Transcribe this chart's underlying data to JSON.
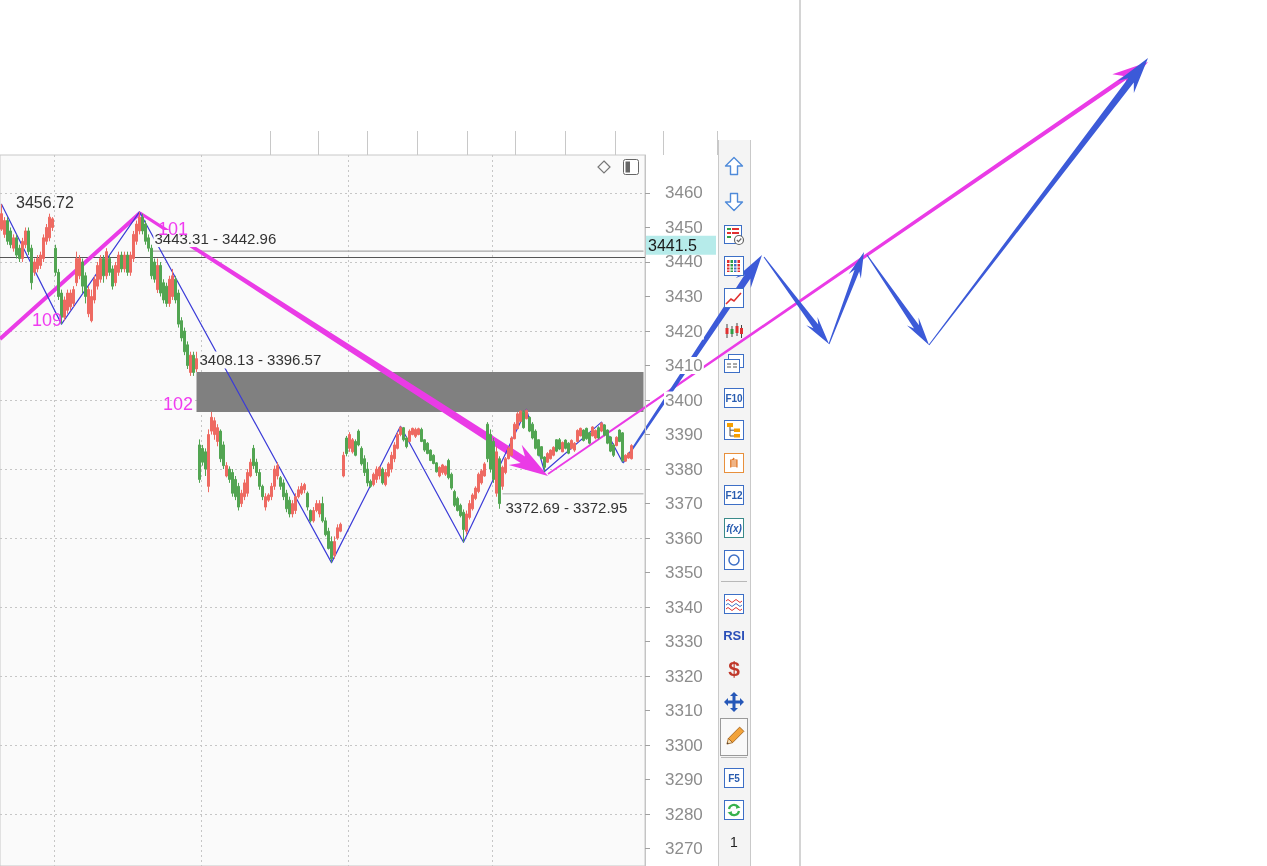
{
  "chart_data": {
    "type": "candlestick",
    "categories": [
      null,
      null,
      null,
      null,
      null,
      null,
      null,
      null,
      null,
      null,
      null,
      null,
      null,
      null,
      null,
      null,
      null,
      null,
      null,
      null,
      null,
      null,
      null,
      null,
      null,
      null,
      null,
      null,
      null,
      null,
      null,
      null,
      null,
      null,
      null,
      null,
      null,
      null,
      null,
      null,
      null,
      null,
      null,
      null,
      null,
      null,
      null,
      null,
      null,
      null,
      null,
      null,
      null,
      null,
      null,
      null,
      null,
      null,
      null,
      null,
      null,
      null,
      null,
      null,
      null,
      null,
      null,
      null,
      null,
      null,
      null,
      null,
      null,
      null,
      null,
      null,
      null,
      null,
      null,
      null,
      null,
      null,
      null,
      null,
      null,
      null,
      null,
      null,
      null,
      null,
      null,
      null,
      null,
      null,
      null,
      null,
      null,
      null,
      null,
      null,
      null,
      null,
      null,
      null,
      null,
      null,
      null,
      null,
      null,
      null,
      null,
      null,
      null,
      null,
      null,
      null,
      null,
      null,
      null,
      null,
      null,
      null,
      null,
      null,
      null,
      null,
      null,
      null,
      null,
      null,
      null,
      null,
      null,
      null,
      null,
      null,
      null,
      null,
      null,
      null,
      null,
      null,
      null,
      null,
      null,
      null,
      null,
      null,
      null,
      null,
      null,
      null,
      null,
      null,
      null,
      null,
      null,
      null,
      null,
      null,
      null,
      null,
      null,
      null,
      null,
      null,
      null,
      null,
      null,
      null,
      null,
      null,
      null,
      null,
      null,
      null,
      null,
      null,
      null,
      null,
      null,
      null,
      null,
      null,
      null,
      null,
      null,
      null,
      null,
      null,
      null,
      null,
      null,
      null,
      null,
      null,
      null,
      null,
      null,
      null,
      null,
      null,
      null,
      null,
      null,
      null,
      null,
      null,
      null,
      null,
      null,
      null,
      null,
      null,
      null
    ],
    "ohlc": [
      [
        3449.5,
        3456.72,
        3449,
        3454
      ],
      [
        3448,
        3453,
        3447,
        3452
      ],
      [
        3452,
        3453,
        3445,
        3446
      ],
      [
        3449,
        3450,
        3444,
        3445
      ],
      [
        3444,
        3448,
        3443,
        3447
      ],
      [
        3447,
        3448,
        3441,
        3442
      ],
      [
        3444,
        3445,
        3440,
        3441
      ],
      [
        3441,
        3447,
        3440,
        3446
      ],
      [
        3445,
        3450,
        3444,
        3449
      ],
      [
        3449,
        3450,
        3442,
        3443
      ],
      [
        3444,
        3445,
        3432,
        3434
      ],
      [
        3437,
        3441,
        3436,
        3440
      ],
      [
        3438,
        3442,
        3437,
        3441
      ],
      [
        3439,
        3443,
        3438,
        3442
      ],
      [
        3441,
        3448,
        3440,
        3447
      ],
      [
        3446,
        3451,
        3445,
        3450
      ],
      [
        3447,
        3454,
        3446,
        3453
      ],
      [
        3450,
        3453,
        3449,
        3452.5
      ],
      [
        3444,
        3445,
        3436,
        3437
      ],
      [
        3437,
        3438,
        3429,
        3430
      ],
      [
        3431,
        3432,
        3422,
        3424
      ],
      [
        3424,
        3430,
        3423,
        3429
      ],
      [
        3426,
        3432,
        3425,
        3431
      ],
      [
        3427,
        3432,
        3426,
        3431
      ],
      [
        3428,
        3433,
        3427,
        3432
      ],
      [
        3434,
        3443,
        3433,
        3441
      ],
      [
        3436,
        3442,
        3435,
        3441
      ],
      [
        3440,
        3441,
        3431,
        3433
      ],
      [
        3436,
        3437,
        3428,
        3430
      ],
      [
        3425,
        3433,
        3424,
        3432
      ],
      [
        3423,
        3432,
        3422.5,
        3430
      ],
      [
        3429,
        3436,
        3428,
        3435
      ],
      [
        3433,
        3440,
        3432,
        3439
      ],
      [
        3435,
        3442,
        3434,
        3441
      ],
      [
        3441,
        3442,
        3434,
        3436
      ],
      [
        3436,
        3444,
        3435,
        3443
      ],
      [
        3441,
        3442,
        3436,
        3437
      ],
      [
        3438,
        3439,
        3432,
        3433
      ],
      [
        3434,
        3440,
        3433,
        3439
      ],
      [
        3437,
        3443,
        3436,
        3442
      ],
      [
        3442,
        3443,
        3437,
        3438
      ],
      [
        3438,
        3443,
        3437,
        3442
      ],
      [
        3442,
        3443,
        3436,
        3437
      ],
      [
        3437,
        3443,
        3436,
        3442
      ],
      [
        3441,
        3449,
        3440,
        3448
      ],
      [
        3446,
        3452,
        3445,
        3451
      ],
      [
        3449,
        3454.5,
        3448,
        3453
      ],
      [
        3453,
        3454,
        3448,
        3449
      ],
      [
        3451,
        3452,
        3445,
        3446
      ],
      [
        3447,
        3448,
        3443,
        3444
      ],
      [
        3444,
        3445,
        3435,
        3436
      ],
      [
        3440,
        3441,
        3434,
        3435
      ],
      [
        3432,
        3441,
        3431,
        3439
      ],
      [
        3439,
        3440,
        3430,
        3431
      ],
      [
        3434,
        3435,
        3428,
        3429
      ],
      [
        3433,
        3434,
        3427,
        3428
      ],
      [
        3428,
        3436,
        3427,
        3435
      ],
      [
        3430,
        3438,
        3429,
        3436
      ],
      [
        3435,
        3436,
        3428,
        3429
      ],
      [
        3431,
        3432,
        3421,
        3422
      ],
      [
        3423,
        3424,
        3417,
        3418
      ],
      [
        3420,
        3421,
        3413,
        3414
      ],
      [
        3416,
        3417,
        3409,
        3410
      ],
      [
        3408,
        3414,
        3407,
        3413
      ],
      [
        3413,
        3414,
        3407,
        3408
      ],
      [
        3409,
        3414,
        3408.13,
        3412
      ],
      [
        3387,
        3388.6,
        3376,
        3377
      ],
      [
        3386,
        3387,
        3381,
        3382
      ],
      [
        3385,
        3386,
        3378,
        3380
      ],
      [
        3375,
        3391.5,
        3373.3,
        3390
      ],
      [
        3391,
        3396.57,
        3390,
        3395
      ],
      [
        3390,
        3395,
        3388.5,
        3394
      ],
      [
        3388,
        3393,
        3386.6,
        3392
      ],
      [
        3391,
        3391.5,
        3382,
        3383
      ],
      [
        3387,
        3388,
        3380,
        3381
      ],
      [
        3378,
        3382,
        3377.6,
        3381
      ],
      [
        3380,
        3380.8,
        3376,
        3377
      ],
      [
        3379,
        3380,
        3372,
        3373
      ],
      [
        3377,
        3378,
        3371,
        3372
      ],
      [
        3375,
        3376,
        3368,
        3369
      ],
      [
        3370,
        3374,
        3369,
        3373
      ],
      [
        3372,
        3377,
        3371,
        3376
      ],
      [
        3373,
        3380,
        3372,
        3379
      ],
      [
        3378,
        3383,
        3377.6,
        3382
      ],
      [
        3386,
        3387,
        3380,
        3381
      ],
      [
        3382,
        3383,
        3378,
        3379
      ],
      [
        3379,
        3380,
        3374,
        3375
      ],
      [
        3375,
        3375.5,
        3371,
        3372
      ],
      [
        3369,
        3373,
        3368,
        3372
      ],
      [
        3371,
        3373,
        3370.5,
        3372.5
      ],
      [
        3372,
        3376,
        3371,
        3375
      ],
      [
        3375,
        3381,
        3374,
        3380
      ],
      [
        3378,
        3382,
        3377,
        3381
      ],
      [
        3377.5,
        3378,
        3374,
        3375
      ],
      [
        3376,
        3377,
        3371,
        3372
      ],
      [
        3373,
        3374,
        3367.5,
        3368.5
      ],
      [
        3371,
        3372,
        3366,
        3367
      ],
      [
        3367,
        3371,
        3366,
        3370
      ],
      [
        3368,
        3373,
        3367,
        3372
      ],
      [
        3372,
        3375,
        3371.5,
        3374
      ],
      [
        3373,
        3376,
        3372.5,
        3375
      ],
      [
        3374,
        3376,
        3373,
        3375.5
      ],
      [
        3373,
        3373.5,
        3368,
        3369
      ],
      [
        3368,
        3368.3,
        3364.5,
        3365
      ],
      [
        3365,
        3369,
        3364.5,
        3368
      ],
      [
        3368,
        3371,
        3367.5,
        3370
      ],
      [
        3367,
        3371,
        3366,
        3370
      ],
      [
        3370,
        3372,
        3364.5,
        3365
      ],
      [
        3365,
        3366,
        3360.5,
        3361
      ],
      [
        3362,
        3363,
        3356.7,
        3357
      ],
      [
        3359,
        3360.5,
        3352.9,
        3354
      ],
      [
        3355,
        3360.5,
        3354,
        3359
      ],
      [
        3360,
        3364,
        3359.5,
        3363
      ],
      [
        3362,
        3364.5,
        3361.7,
        3364
      ],
      [
        3378,
        3385,
        3377.6,
        3384
      ],
      [
        3389,
        3389.6,
        3383.7,
        3384.5
      ],
      [
        3386,
        3390.7,
        3385,
        3390
      ],
      [
        3385,
        3389,
        3384.5,
        3388.5
      ],
      [
        3388,
        3388.6,
        3383.7,
        3384
      ],
      [
        3391,
        3391.5,
        3386.6,
        3387
      ],
      [
        3386,
        3386.6,
        3381,
        3381.5
      ],
      [
        3383,
        3384,
        3378,
        3379
      ],
      [
        3380,
        3382,
        3375,
        3376
      ],
      [
        3376.5,
        3377,
        3374.6,
        3375
      ],
      [
        3375.5,
        3379,
        3375,
        3378.5
      ],
      [
        3377,
        3380.8,
        3376,
        3380
      ],
      [
        3378,
        3380.8,
        3377,
        3380.5
      ],
      [
        3380,
        3380.5,
        3375.5,
        3376
      ],
      [
        3375.5,
        3380,
        3375,
        3379
      ],
      [
        3378,
        3382,
        3377.6,
        3381.5
      ],
      [
        3380,
        3385,
        3379,
        3384
      ],
      [
        3383,
        3387.8,
        3382,
        3387
      ],
      [
        3386,
        3390.7,
        3385.7,
        3390
      ],
      [
        3390,
        3392.4,
        3389.5,
        3392
      ],
      [
        3392,
        3392.2,
        3388,
        3388.5
      ],
      [
        3389,
        3389.5,
        3386,
        3386.5
      ],
      [
        3388,
        3391.5,
        3387.8,
        3391
      ],
      [
        3390,
        3392,
        3389.8,
        3391.8
      ],
      [
        3389.5,
        3392,
        3389,
        3391.5
      ],
      [
        3390,
        3392,
        3389.8,
        3391.7
      ],
      [
        3391.5,
        3392,
        3387.8,
        3388
      ],
      [
        3388.5,
        3388.6,
        3385,
        3385.5
      ],
      [
        3387.5,
        3387.8,
        3384.3,
        3384.5
      ],
      [
        3385.5,
        3385.7,
        3382.3,
        3382.5
      ],
      [
        3384,
        3384.3,
        3381.4,
        3381.6
      ],
      [
        3381.8,
        3382,
        3379,
        3379.2
      ],
      [
        3378,
        3380.8,
        3377.6,
        3380.5
      ],
      [
        3379,
        3381.5,
        3378.4,
        3381.2
      ],
      [
        3378.5,
        3381,
        3378,
        3380.8
      ],
      [
        3382.5,
        3383,
        3377,
        3377.5
      ],
      [
        3378.5,
        3379,
        3374,
        3374.5
      ],
      [
        3373.5,
        3374,
        3369,
        3369.5
      ],
      [
        3371.5,
        3372,
        3367.7,
        3368
      ],
      [
        3369.5,
        3370,
        3366,
        3366.5
      ],
      [
        3367.5,
        3368.3,
        3358.8,
        3362.5
      ],
      [
        3362,
        3368,
        3361,
        3367
      ],
      [
        3366,
        3371,
        3365.4,
        3370
      ],
      [
        3368.5,
        3373,
        3368,
        3372.5
      ],
      [
        3371.5,
        3375,
        3371,
        3374.5
      ],
      [
        3373.5,
        3379,
        3373,
        3378.5
      ],
      [
        3376,
        3380,
        3375.5,
        3379.5
      ],
      [
        3378,
        3382,
        3377.8,
        3381.5
      ],
      [
        3393,
        3393.6,
        3382,
        3383
      ],
      [
        3390,
        3391.5,
        3379,
        3380
      ],
      [
        3388,
        3389,
        3376,
        3377
      ],
      [
        3373,
        3386.6,
        3372,
        3385
      ],
      [
        3383,
        3383.7,
        3368.5,
        3370
      ],
      [
        3375,
        3381,
        3374,
        3380.5
      ],
      [
        3379,
        3383.5,
        3378.5,
        3383
      ],
      [
        3383,
        3386.6,
        3382.8,
        3386
      ],
      [
        3384,
        3389.5,
        3383.7,
        3389
      ],
      [
        3388.8,
        3393.6,
        3388.6,
        3393
      ],
      [
        3391.7,
        3396.5,
        3391.5,
        3396
      ],
      [
        3393.8,
        3397,
        3393.6,
        3396.8
      ],
      [
        3396.5,
        3397,
        3391.7,
        3392
      ],
      [
        3394.6,
        3397.3,
        3394.4,
        3397
      ],
      [
        3395,
        3395.3,
        3390.7,
        3391
      ],
      [
        3393,
        3393.6,
        3388.6,
        3389
      ],
      [
        3391,
        3391.5,
        3385.7,
        3386
      ],
      [
        3388.5,
        3388.6,
        3383.7,
        3384
      ],
      [
        3386.5,
        3386.6,
        3382.8,
        3383
      ],
      [
        3383.5,
        3383.7,
        3379.3,
        3380.5
      ],
      [
        3382,
        3384.9,
        3381.8,
        3384.5
      ],
      [
        3383,
        3385.7,
        3382.8,
        3385.5
      ],
      [
        3384,
        3386.6,
        3383.7,
        3386.3
      ],
      [
        3388.5,
        3388.6,
        3384.9,
        3385.2
      ],
      [
        3388.5,
        3389,
        3385.5,
        3385.8
      ],
      [
        3385,
        3388,
        3384.9,
        3387.7
      ],
      [
        3388.4,
        3388.6,
        3385.7,
        3386
      ],
      [
        3387.5,
        3387.8,
        3384.3,
        3384.6
      ],
      [
        3386,
        3388.6,
        3385.7,
        3388.3
      ],
      [
        3385.5,
        3387.8,
        3385,
        3387.5
      ],
      [
        3388,
        3391.5,
        3387.8,
        3391.2
      ],
      [
        3389.6,
        3392,
        3389.5,
        3391.8
      ],
      [
        3391.3,
        3391.5,
        3388,
        3388.3
      ],
      [
        3391.8,
        3392,
        3388.5,
        3388.8
      ],
      [
        3390.5,
        3390.7,
        3387.2,
        3387.5
      ],
      [
        3389.6,
        3392.4,
        3389.5,
        3392.2
      ],
      [
        3389,
        3391.5,
        3388.6,
        3391.2
      ],
      [
        3392,
        3392.4,
        3388.6,
        3389
      ],
      [
        3391,
        3393.6,
        3390.7,
        3393.3
      ],
      [
        3392.8,
        3393,
        3389.5,
        3389.8
      ],
      [
        3391.3,
        3391.5,
        3387.2,
        3387.5
      ],
      [
        3389.3,
        3389.5,
        3384.9,
        3385.2
      ],
      [
        3387,
        3387.5,
        3383.5,
        3384
      ],
      [
        3386.8,
        3389.5,
        3386.6,
        3389.2
      ],
      [
        3391.3,
        3391.5,
        3387.8,
        3388
      ],
      [
        3390.5,
        3390.7,
        3382,
        3382.5
      ],
      [
        3382.3,
        3384.3,
        3382.1,
        3384
      ],
      [
        3383.2,
        3384.9,
        3383,
        3384.6
      ],
      [
        3383,
        3387.2,
        3382.8,
        3386.8
      ],
      null,
      null,
      null,
      null
    ],
    "colors": [
      "#ee6a62",
      "#ee6a62",
      "#52a552",
      "#52a552",
      "#ee6a62",
      "#52a552",
      "#52a552",
      "#ee6a62",
      "#ee6a62",
      "#52a552",
      "#52a552",
      "#ee6a62",
      "#ee6a62",
      "#ee6a62",
      "#ee6a62",
      "#ee6a62",
      "#ee6a62",
      "#ee6a62",
      "#52a552",
      "#52a552",
      "#52a552",
      "#ee6a62",
      "#ee6a62",
      "#ee6a62",
      "#ee6a62",
      "#ee6a62",
      "#ee6a62",
      "#52a552",
      "#52a552",
      "#ee6a62",
      "#ee6a62",
      "#ee6a62",
      "#ee6a62",
      "#ee6a62",
      "#52a552",
      "#ee6a62",
      "#52a552",
      "#52a552",
      "#ee6a62",
      "#ee6a62",
      "#52a552",
      "#ee6a62",
      "#52a552",
      "#ee6a62",
      "#ee6a62",
      "#ee6a62",
      "#ee6a62",
      "#52a552",
      "#52a552",
      "#52a552",
      "#52a552",
      "#52a552",
      "#ee6a62",
      "#52a552",
      "#52a552",
      "#52a552",
      "#ee6a62",
      "#ee6a62",
      "#52a552",
      "#52a552",
      "#52a552",
      "#52a552",
      "#52a552",
      "#ee6a62",
      "#52a552",
      "#ee6a62",
      "#52a552",
      "#52a552",
      "#52a552",
      "#ee6a62",
      "#ee6a62",
      "#ee6a62",
      "#ee6a62",
      "#52a552",
      "#52a552",
      "#ee6a62",
      "#52a552",
      "#52a552",
      "#52a552",
      "#52a552",
      "#ee6a62",
      "#ee6a62",
      "#ee6a62",
      "#ee6a62",
      "#52a552",
      "#52a552",
      "#52a552",
      "#52a552",
      "#ee6a62",
      "#ee6a62",
      "#ee6a62",
      "#ee6a62",
      "#ee6a62",
      "#52a552",
      "#52a552",
      "#52a552",
      "#52a552",
      "#ee6a62",
      "#ee6a62",
      "#ee6a62",
      "#ee6a62",
      "#ee6a62",
      "#52a552",
      "#52a552",
      "#ee6a62",
      "#ee6a62",
      "#ee6a62",
      "#52a552",
      "#52a552",
      "#52a552",
      "#52a552",
      "#ee6a62",
      "#ee6a62",
      "#ee6a62",
      "#ee6a62",
      "#52a552",
      "#ee6a62",
      "#ee6a62",
      "#52a552",
      "#52a552",
      "#52a552",
      "#52a552",
      "#52a552",
      "#52a552",
      "#ee6a62",
      "#ee6a62",
      "#ee6a62",
      "#52a552",
      "#ee6a62",
      "#ee6a62",
      "#ee6a62",
      "#ee6a62",
      "#ee6a62",
      "#ee6a62",
      "#52a552",
      "#52a552",
      "#ee6a62",
      "#ee6a62",
      "#ee6a62",
      "#ee6a62",
      "#52a552",
      "#52a552",
      "#52a552",
      "#52a552",
      "#52a552",
      "#52a552",
      "#ee6a62",
      "#ee6a62",
      "#ee6a62",
      "#52a552",
      "#52a552",
      "#52a552",
      "#52a552",
      "#52a552",
      "#52a552",
      "#ee6a62",
      "#ee6a62",
      "#ee6a62",
      "#ee6a62",
      "#ee6a62",
      "#ee6a62",
      "#ee6a62",
      "#52a552",
      "#52a552",
      "#52a552",
      "#ee6a62",
      "#52a552",
      "#ee6a62",
      "#ee6a62",
      "#ee6a62",
      "#ee6a62",
      "#ee6a62",
      "#ee6a62",
      "#ee6a62",
      "#52a552",
      "#ee6a62",
      "#52a552",
      "#52a552",
      "#52a552",
      "#52a552",
      "#52a552",
      "#52a552",
      "#ee6a62",
      "#ee6a62",
      "#ee6a62",
      "#52a552",
      "#52a552",
      "#ee6a62",
      "#52a552",
      "#52a552",
      "#ee6a62",
      "#ee6a62",
      "#ee6a62",
      "#ee6a62",
      "#52a552",
      "#52a552",
      "#52a552",
      "#ee6a62",
      "#ee6a62",
      "#52a552",
      "#ee6a62",
      "#52a552",
      "#52a552",
      "#52a552",
      "#52a552",
      "#ee6a62",
      "#52a552",
      "#52a552",
      "#ee6a62",
      "#ee6a62",
      "#ee6a62",
      null,
      null,
      null,
      null
    ],
    "series": [
      {
        "type": "line",
        "color": "#3b3bd8",
        "values": [
          3456.7,
          null,
          null,
          null,
          null,
          null,
          null,
          null,
          null,
          null,
          null,
          null,
          null,
          null,
          null,
          null,
          null,
          null,
          null,
          null,
          3422,
          null,
          null,
          null,
          null,
          null,
          null,
          null,
          null,
          null,
          null,
          null,
          null,
          null,
          null,
          null,
          null,
          null,
          null,
          null,
          null,
          null,
          null,
          null,
          null,
          null,
          3454.5,
          null,
          null,
          null,
          null,
          null,
          null,
          null,
          null,
          null,
          null,
          null,
          null,
          null,
          null,
          null,
          null,
          null,
          null,
          null,
          null,
          null,
          null,
          null,
          null,
          null,
          null,
          null,
          null,
          null,
          null,
          null,
          null,
          null,
          null,
          null,
          null,
          null,
          null,
          null,
          null,
          null,
          null,
          null,
          null,
          null,
          null,
          null,
          null,
          null,
          null,
          null,
          null,
          null,
          null,
          null,
          null,
          null,
          null,
          null,
          null,
          null,
          null,
          null,
          3352.9,
          null,
          null,
          null,
          null,
          null,
          null,
          null,
          null,
          null,
          null,
          null,
          null,
          null,
          null,
          null,
          null,
          null,
          null,
          null,
          null,
          null,
          null,
          3392.4,
          null,
          null,
          null,
          null,
          null,
          null,
          null,
          null,
          null,
          null,
          null,
          null,
          null,
          null,
          null,
          null,
          null,
          null,
          null,
          null,
          3358.8,
          null,
          null,
          null,
          null,
          null,
          null,
          null,
          null,
          null,
          null,
          null,
          null,
          null,
          null,
          null,
          null,
          null,
          null,
          null,
          null,
          3397.3,
          null,
          null,
          null,
          null,
          null,
          3379.3,
          null,
          null,
          null,
          null,
          null,
          null,
          null,
          null,
          null,
          null,
          null,
          null,
          null,
          null,
          null,
          null,
          null,
          null,
          3393.6,
          null,
          null,
          null,
          null,
          null,
          null,
          3382,
          null,
          null,
          null,
          null,
          null,
          null,
          null
        ]
      }
    ],
    "ylim": [
      3265,
      3471
    ],
    "yticks": [
      3270,
      3280,
      3290,
      3300,
      3310,
      3320,
      3330,
      3340,
      3350,
      3360,
      3370,
      3380,
      3390,
      3400,
      3410,
      3420,
      3430,
      3440,
      3450,
      3460
    ],
    "grid": true,
    "tick_labels": "y",
    "ref_lines": [
      {
        "axis": "y",
        "value": 3441.5,
        "label": "3441.5",
        "color": "#555555"
      }
    ],
    "bands": [
      {
        "axis": "y",
        "from": 3442.96,
        "to": 3443.31,
        "label": "3443.31 - 3442.96",
        "color": "#a6a6a6"
      },
      {
        "axis": "y",
        "from": 3396.57,
        "to": 3408.13,
        "label": "3408.13 - 3396.57",
        "color": "#808080"
      },
      {
        "axis": "y",
        "from": 3372.69,
        "to": 3372.95,
        "label": "3372.69 - 3372.95",
        "color": "#8c8c8c"
      }
    ],
    "annotations": [
      "3456.72",
      "109",
      "101",
      "102",
      "F10",
      "自",
      "F12",
      "f(x)",
      "RSI",
      "$",
      "F5",
      "1"
    ]
  }
}
